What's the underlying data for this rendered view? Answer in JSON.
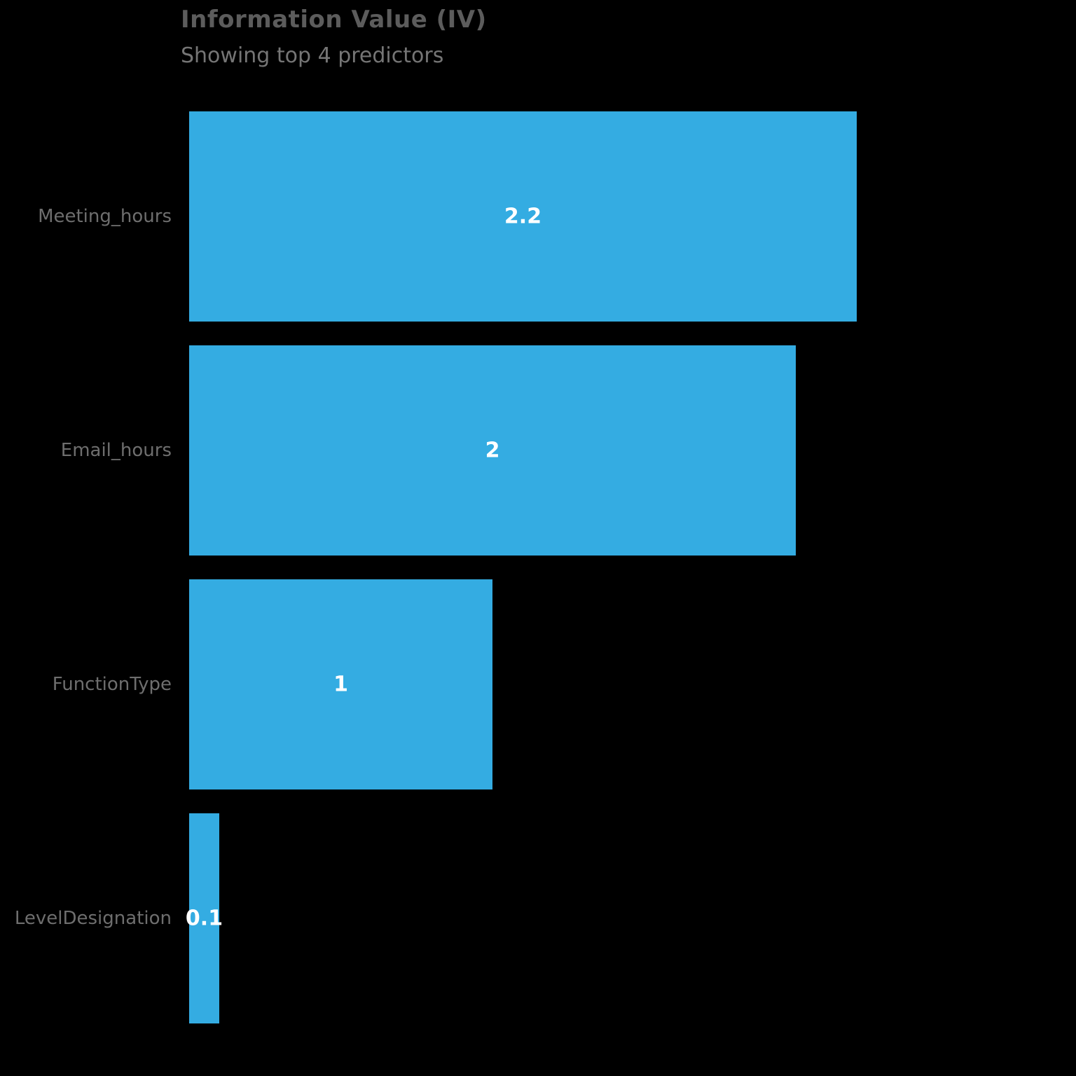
{
  "header": {
    "title": "Information Value (IV)",
    "subtitle": "Showing top 4 predictors"
  },
  "chart_data": {
    "type": "bar",
    "orientation": "horizontal",
    "title": "Information Value (IV)",
    "subtitle": "Showing top 4 predictors",
    "categories": [
      "Meeting_hours",
      "Email_hours",
      "FunctionType",
      "LevelDesignation"
    ],
    "values": [
      2.2,
      2,
      1,
      0.1
    ],
    "value_labels": [
      "2.2",
      "2",
      "1",
      "0.1"
    ],
    "xlim": [
      0,
      2.2
    ],
    "grid": false,
    "legend_position": "none",
    "colors": {
      "bar": "#34ACE2",
      "value_label": "#FFFFFF",
      "category_label": "#6E6E6E",
      "title": "#5C5C5C",
      "subtitle": "#757575",
      "background": "#000000"
    }
  }
}
